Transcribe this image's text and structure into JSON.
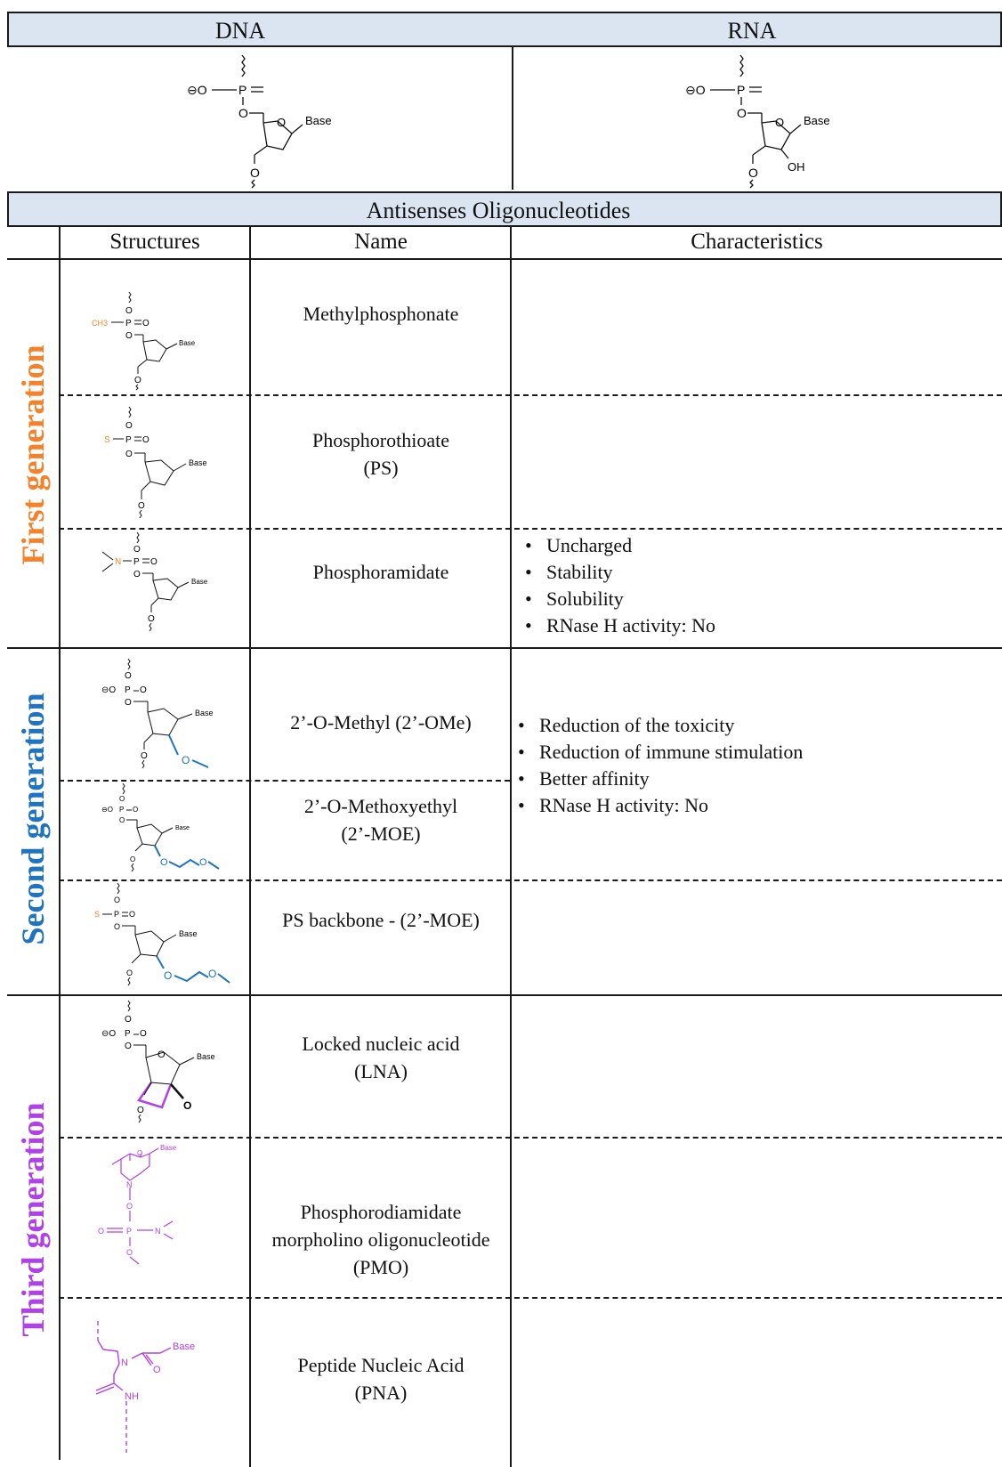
{
  "top": {
    "dna_label": "DNA",
    "rna_label": "RNA"
  },
  "aso_header": "Antisenses Oligonucleotides",
  "columns": {
    "structures": "Structures",
    "name": "Name",
    "characteristics": "Characteristics"
  },
  "chem_labels": {
    "base": "Base",
    "oh": "OH",
    "o": "O",
    "p": "P",
    "ch3": "CH3",
    "s": "S",
    "n": "N",
    "nh": "NH",
    "minus": "⊖O"
  },
  "generations": [
    {
      "label": "First generation",
      "color": "#f5822a",
      "rows": [
        {
          "name": "Methylphosphonate"
        },
        {
          "name": "Phosphorothioate (PS)",
          "line1": "Phosphorothioate",
          "line2": "(PS)"
        },
        {
          "name": "Phosphoramidate"
        }
      ],
      "characteristics": [
        "Uncharged",
        "Stability",
        "Solubility",
        "RNase H activity: No"
      ]
    },
    {
      "label": "Second generation",
      "color": "#1e74c0",
      "rows": [
        {
          "name": "2’-O-Methyl (2’-OMe)"
        },
        {
          "name": "2’-O-Methoxyethyl (2’-MOE)",
          "line1": "2’-O-Methoxyethyl",
          "line2": "(2’-MOE)"
        },
        {
          "name": "PS backbone - (2’-MOE)"
        }
      ],
      "characteristics": [
        "Reduction of the toxicity",
        "Reduction of immune stimulation",
        "Better affinity",
        "RNase H activity: No"
      ]
    },
    {
      "label": "Third generation",
      "color": "#b040e8",
      "rows": [
        {
          "name": "Locked nucleic acid (LNA)",
          "line1": "Locked nucleic acid",
          "line2": "(LNA)"
        },
        {
          "name": "Phosphorodiamidate morpholino oligonucleotide (PMO)",
          "line1": "Phosphorodiamidate",
          "line2": "morpholino oligonucleotide",
          "line3": "(PMO)"
        },
        {
          "name": "Peptide Nucleic Acid (PNA)",
          "line1": "Peptide Nucleic Acid",
          "line2": "(PNA)"
        }
      ]
    }
  ],
  "colors": {
    "header_fill": "#dae5f1",
    "orange": "#f5822a",
    "blue": "#1e74c0",
    "purple": "#b040e8"
  }
}
